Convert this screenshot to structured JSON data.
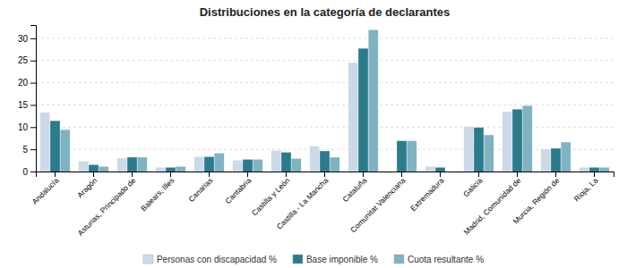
{
  "chart_data": {
    "type": "bar",
    "title": "Distribuciones en la categoría de declarantes",
    "categories": [
      "Andalucía",
      "Aragón",
      "Asturias, Principado de",
      "Balears, Illes",
      "Canarias",
      "Cantabria",
      "Castilla y León",
      "Castilla - La Mancha",
      "Cataluña",
      "Comunitat Valenciana",
      "Extremadura",
      "Galicia",
      "Madrid, Comunidad de",
      "Murcia, Región de",
      "Rioja, La"
    ],
    "series": [
      {
        "name": "Personas con discapacidad %",
        "color": "#ccd9e8",
        "values": [
          13.3,
          2.3,
          3.0,
          0.9,
          3.3,
          2.5,
          4.7,
          5.7,
          24.5,
          0.0,
          1.1,
          10.1,
          13.5,
          5.0,
          0.9
        ]
      },
      {
        "name": "Base imponible %",
        "color": "#2b7b8c",
        "values": [
          11.4,
          1.5,
          3.2,
          0.9,
          3.3,
          2.7,
          4.3,
          4.6,
          27.7,
          6.9,
          0.9,
          9.9,
          14.0,
          5.2,
          0.9
        ]
      },
      {
        "name": "Cuota resultante %",
        "color": "#7fb3c2",
        "values": [
          9.4,
          1.1,
          3.2,
          1.1,
          4.1,
          2.7,
          2.9,
          3.2,
          31.9,
          6.9,
          0.0,
          8.2,
          14.8,
          6.6,
          0.9
        ]
      }
    ],
    "ylim": [
      0,
      33
    ],
    "yticks": [
      0,
      5,
      10,
      15,
      20,
      25,
      30
    ],
    "grid": true,
    "legend": "bottom"
  }
}
